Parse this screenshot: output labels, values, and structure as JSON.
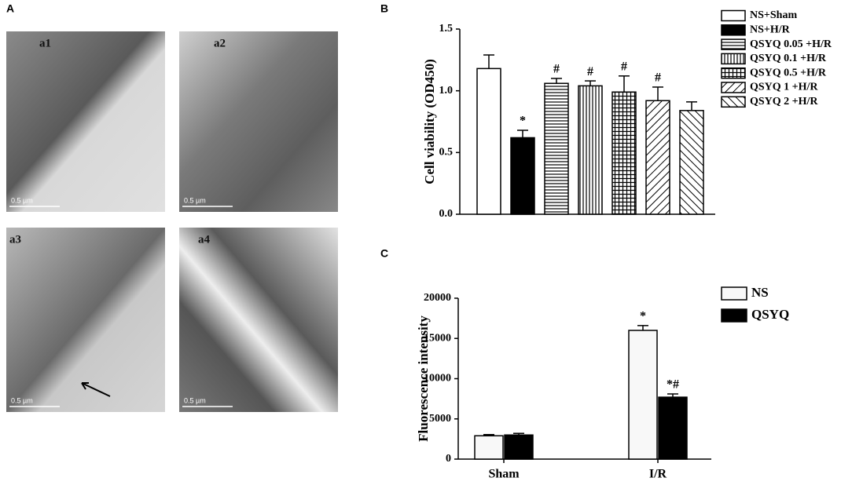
{
  "panel_labels": [
    "A",
    "B",
    "C"
  ],
  "micrographs": [
    {
      "label": "a1",
      "scale_bar": "0.5 µm"
    },
    {
      "label": "a2",
      "scale_bar": "0.5 µm"
    },
    {
      "label": "a3",
      "scale_bar": "0.5 µm"
    },
    {
      "label": "a4",
      "scale_bar": "0.5 µm"
    }
  ],
  "chart_data": [
    {
      "type": "bar",
      "ylabel": "Cell viability (OD450)",
      "ylim": [
        0,
        1.5
      ],
      "yticks": [
        {
          "value": 0,
          "label": "0.0"
        },
        0.5,
        {
          "value": 1,
          "label": "1.0"
        },
        1.5
      ],
      "series": [
        {
          "name": "NS+Sham",
          "color": "#ffffff",
          "values": [
            1.18
          ],
          "errors": [
            0.11
          ]
        },
        {
          "name": "NS+H/R",
          "color": "#000000",
          "values": [
            0.62
          ],
          "errors": [
            0.06
          ],
          "annotations": [
            "*"
          ]
        },
        {
          "name": "QSYQ 0.05 +H/R",
          "color": "#ffffff",
          "pattern": "hlines",
          "values": [
            1.06
          ],
          "errors": [
            0.04
          ],
          "annotations": [
            "#"
          ]
        },
        {
          "name": "QSYQ 0.1 +H/R",
          "color": "#ffffff",
          "pattern": "vlines",
          "values": [
            1.04
          ],
          "errors": [
            0.04
          ],
          "annotations": [
            "#"
          ]
        },
        {
          "name": "QSYQ 0.5 +H/R",
          "color": "#ffffff",
          "pattern": "grid",
          "values": [
            0.99
          ],
          "errors": [
            0.13
          ],
          "annotations": [
            "#"
          ]
        },
        {
          "name": "QSYQ 1 +H/R",
          "color": "#ffffff",
          "pattern": "diagdown",
          "values": [
            0.92
          ],
          "errors": [
            0.11
          ],
          "annotations": [
            "#"
          ]
        },
        {
          "name": "QSYQ 2 +H/R",
          "color": "#ffffff",
          "pattern": "diagup",
          "values": [
            0.84
          ],
          "errors": [
            0.07
          ]
        }
      ]
    },
    {
      "type": "bar",
      "ylabel": "Fluorescence intensity",
      "categories": [
        "Sham",
        "I/R"
      ],
      "ylim": [
        0,
        20000
      ],
      "yticks": [
        0,
        5000,
        10000,
        15000,
        20000
      ],
      "series": [
        {
          "name": "NS",
          "color": "#f8f8f8",
          "values": [
            2900,
            16000
          ],
          "errors": [
            150,
            600
          ],
          "annotations": [
            null,
            "*"
          ]
        },
        {
          "name": "QSYQ",
          "color": "#000000",
          "values": [
            3000,
            7700
          ],
          "errors": [
            200,
            400
          ],
          "annotations": [
            null,
            "*#"
          ]
        }
      ]
    }
  ]
}
